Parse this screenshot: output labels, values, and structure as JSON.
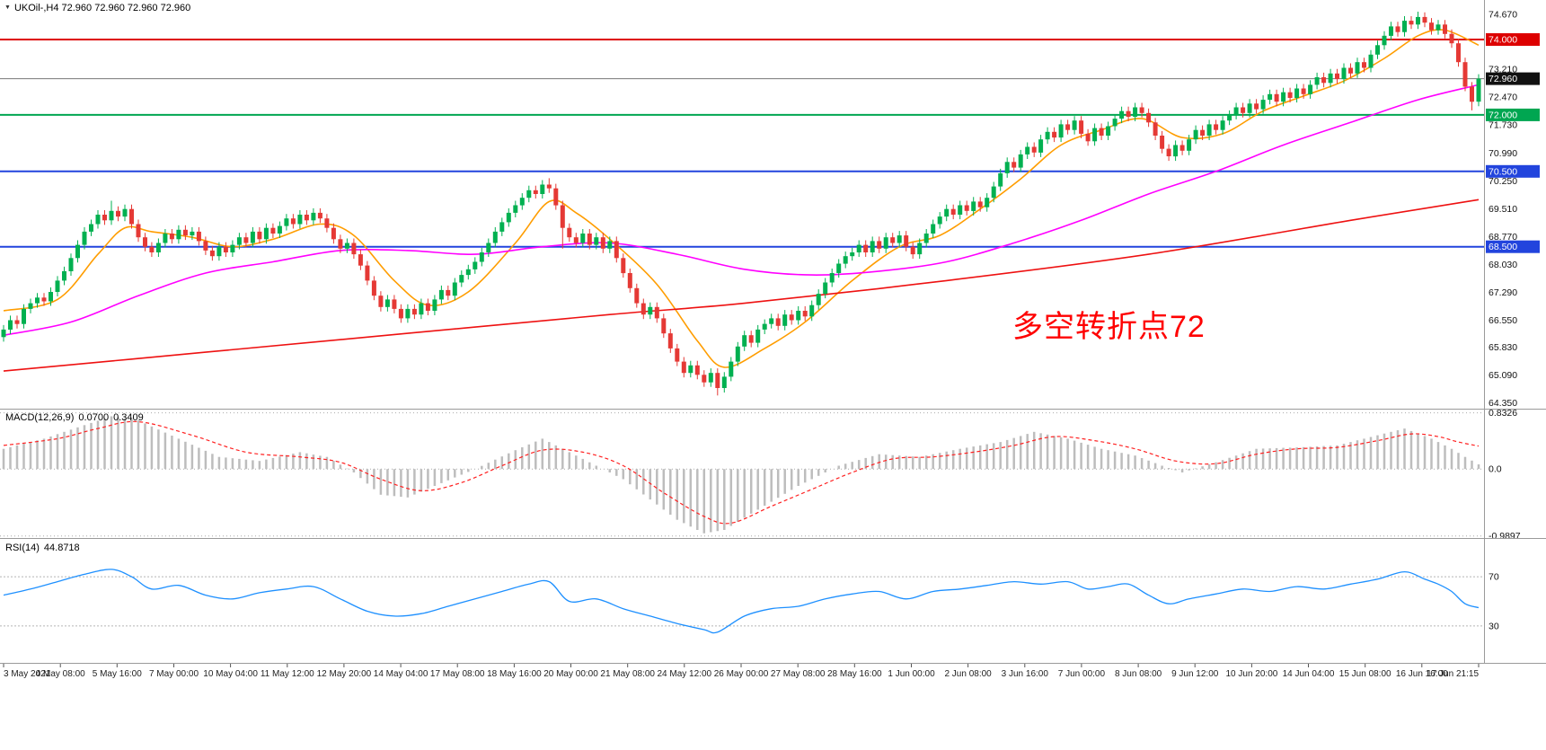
{
  "header": {
    "marker_glyph": "▼",
    "symbol_line": "UKOil-,H4 72.960 72.960 72.960 72.960"
  },
  "annotation": {
    "text": "多空转折点72",
    "color": "#ff0000"
  },
  "chart_data": {
    "type": "candlestick",
    "symbol": "UKOil-",
    "timeframe": "H4",
    "x_labels": [
      "3 May 2021",
      "4 May 08:00",
      "5 May 16:00",
      "7 May 00:00",
      "10 May 04:00",
      "11 May 12:00",
      "12 May 20:00",
      "14 May 04:00",
      "17 May 08:00",
      "18 May 16:00",
      "20 May 00:00",
      "21 May 08:00",
      "24 May 12:00",
      "26 May 00:00",
      "27 May 08:00",
      "28 May 16:00",
      "1 Jun 00:00",
      "2 Jun 08:00",
      "3 Jun 16:00",
      "7 Jun 00:00",
      "8 Jun 08:00",
      "9 Jun 12:00",
      "10 Jun 20:00",
      "14 Jun 04:00",
      "15 Jun 08:00",
      "16 Jun 16:00",
      "17 Jun 21:15"
    ],
    "price_axis": {
      "ticks": [
        74.67,
        73.21,
        72.47,
        71.73,
        70.99,
        70.25,
        69.51,
        68.77,
        68.03,
        67.29,
        66.55,
        65.83,
        65.09,
        64.35
      ],
      "range": [
        64.2,
        75.05
      ]
    },
    "hlines": [
      {
        "price": 74.0,
        "color": "#dd0000",
        "width": 2,
        "badge_bg": "#dd0000"
      },
      {
        "price": 72.96,
        "color": "#777777",
        "width": 1,
        "badge_bg": "#111111"
      },
      {
        "price": 72.0,
        "color": "#00a651",
        "width": 2,
        "badge_bg": "#00a651"
      },
      {
        "price": 70.5,
        "color": "#2244dd",
        "width": 2,
        "badge_bg": "#2244dd"
      },
      {
        "price": 68.5,
        "color": "#2244dd",
        "width": 2,
        "badge_bg": "#2244dd"
      }
    ],
    "candles": {
      "up_color": "#00b050",
      "down_color": "#e53935",
      "first_open": 66.1,
      "default_wick": 0.12,
      "spikes": [
        [
          16,
          "high",
          69.72
        ],
        [
          81,
          "high",
          70.32
        ],
        [
          83,
          "low",
          68.45
        ],
        [
          106,
          "low",
          64.55
        ],
        [
          210,
          "high",
          74.74
        ],
        [
          218,
          "low",
          72.12
        ]
      ],
      "closes": [
        66.3,
        66.55,
        66.45,
        66.85,
        67.0,
        67.15,
        67.05,
        67.3,
        67.6,
        67.85,
        68.2,
        68.55,
        68.9,
        69.1,
        69.35,
        69.2,
        69.45,
        69.3,
        69.5,
        69.1,
        68.75,
        68.5,
        68.35,
        68.6,
        68.85,
        68.7,
        68.95,
        68.8,
        68.9,
        68.65,
        68.4,
        68.25,
        68.5,
        68.35,
        68.55,
        68.75,
        68.6,
        68.9,
        68.7,
        69.0,
        68.85,
        69.05,
        69.25,
        69.1,
        69.35,
        69.2,
        69.4,
        69.25,
        69.0,
        68.7,
        68.45,
        68.6,
        68.3,
        68.0,
        67.6,
        67.2,
        66.9,
        67.1,
        66.85,
        66.6,
        66.85,
        66.7,
        67.0,
        66.8,
        67.1,
        67.35,
        67.2,
        67.55,
        67.75,
        67.9,
        68.1,
        68.35,
        68.6,
        68.9,
        69.15,
        69.4,
        69.6,
        69.8,
        70.0,
        69.9,
        70.15,
        70.05,
        69.6,
        69.0,
        68.75,
        68.6,
        68.85,
        68.55,
        68.75,
        68.45,
        68.65,
        68.2,
        67.8,
        67.4,
        67.0,
        66.7,
        66.9,
        66.6,
        66.2,
        65.8,
        65.45,
        65.15,
        65.35,
        65.1,
        64.9,
        65.15,
        64.75,
        65.05,
        65.45,
        65.85,
        66.15,
        65.95,
        66.3,
        66.45,
        66.6,
        66.4,
        66.7,
        66.55,
        66.8,
        66.65,
        66.95,
        67.25,
        67.55,
        67.8,
        68.05,
        68.25,
        68.35,
        68.55,
        68.35,
        68.65,
        68.45,
        68.75,
        68.6,
        68.8,
        68.5,
        68.3,
        68.6,
        68.85,
        69.1,
        69.3,
        69.5,
        69.35,
        69.6,
        69.45,
        69.7,
        69.55,
        69.8,
        70.1,
        70.45,
        70.75,
        70.6,
        70.95,
        71.15,
        71.0,
        71.35,
        71.55,
        71.4,
        71.75,
        71.6,
        71.85,
        71.5,
        71.3,
        71.65,
        71.45,
        71.7,
        71.9,
        72.1,
        71.95,
        72.2,
        72.05,
        71.8,
        71.45,
        71.1,
        70.9,
        71.2,
        71.05,
        71.35,
        71.6,
        71.45,
        71.75,
        71.6,
        71.85,
        72.0,
        72.2,
        72.05,
        72.3,
        72.15,
        72.4,
        72.55,
        72.35,
        72.6,
        72.45,
        72.7,
        72.55,
        72.8,
        73.0,
        72.85,
        73.1,
        72.95,
        73.25,
        73.1,
        73.4,
        73.25,
        73.6,
        73.85,
        74.1,
        74.35,
        74.2,
        74.5,
        74.4,
        74.6,
        74.45,
        74.25,
        74.4,
        74.15,
        73.9,
        73.4,
        72.75,
        72.35,
        72.96
      ]
    },
    "overlays": [
      {
        "name": "ma-fast",
        "color": "#ff9d00",
        "points": [
          [
            0,
            66.8
          ],
          [
            8,
            67.1
          ],
          [
            14,
            68.3
          ],
          [
            18,
            69.0
          ],
          [
            22,
            68.9
          ],
          [
            28,
            68.75
          ],
          [
            34,
            68.5
          ],
          [
            40,
            68.7
          ],
          [
            47,
            69.1
          ],
          [
            52,
            68.8
          ],
          [
            58,
            67.6
          ],
          [
            63,
            66.95
          ],
          [
            69,
            67.3
          ],
          [
            76,
            68.6
          ],
          [
            81,
            69.7
          ],
          [
            85,
            69.4
          ],
          [
            90,
            68.7
          ],
          [
            97,
            67.5
          ],
          [
            103,
            66.0
          ],
          [
            107,
            65.3
          ],
          [
            113,
            65.8
          ],
          [
            119,
            66.5
          ],
          [
            126,
            67.6
          ],
          [
            133,
            68.5
          ],
          [
            139,
            68.8
          ],
          [
            145,
            69.5
          ],
          [
            151,
            70.3
          ],
          [
            157,
            71.2
          ],
          [
            163,
            71.6
          ],
          [
            169,
            71.9
          ],
          [
            175,
            71.4
          ],
          [
            181,
            71.5
          ],
          [
            187,
            72.1
          ],
          [
            193,
            72.5
          ],
          [
            199,
            72.9
          ],
          [
            205,
            73.5
          ],
          [
            210,
            74.1
          ],
          [
            214,
            74.25
          ],
          [
            219,
            73.85
          ]
        ]
      },
      {
        "name": "ma-mid",
        "color": "#ff00ff",
        "points": [
          [
            0,
            66.15
          ],
          [
            10,
            66.5
          ],
          [
            20,
            67.2
          ],
          [
            30,
            67.8
          ],
          [
            40,
            68.1
          ],
          [
            50,
            68.4
          ],
          [
            60,
            68.4
          ],
          [
            70,
            68.3
          ],
          [
            80,
            68.5
          ],
          [
            90,
            68.6
          ],
          [
            100,
            68.3
          ],
          [
            110,
            67.9
          ],
          [
            120,
            67.75
          ],
          [
            130,
            67.85
          ],
          [
            140,
            68.1
          ],
          [
            150,
            68.6
          ],
          [
            160,
            69.2
          ],
          [
            170,
            69.9
          ],
          [
            180,
            70.5
          ],
          [
            190,
            71.2
          ],
          [
            200,
            71.8
          ],
          [
            210,
            72.4
          ],
          [
            219,
            72.8
          ]
        ]
      },
      {
        "name": "ma-slow",
        "color": "#ee1111",
        "points": [
          [
            0,
            65.2
          ],
          [
            30,
            65.7
          ],
          [
            60,
            66.2
          ],
          [
            90,
            66.7
          ],
          [
            110,
            67.0
          ],
          [
            140,
            67.6
          ],
          [
            170,
            68.3
          ],
          [
            200,
            69.2
          ],
          [
            219,
            69.75
          ]
        ]
      }
    ],
    "macd": {
      "label": "MACD(12,26,9)",
      "value_main": "0.0700",
      "value_signal": "0.3409",
      "range": [
        -1.02,
        0.88
      ],
      "ticks": [
        {
          "v": 0.8326,
          "label": "0.8326"
        },
        {
          "v": 0,
          "label": "0.0"
        },
        {
          "v": -0.9897,
          "label": "-0.9897"
        }
      ],
      "hist_color": "#bdbdbd",
      "signal_color": "#ff2020",
      "hist": [
        [
          0,
          0.3
        ],
        [
          6,
          0.45
        ],
        [
          12,
          0.65
        ],
        [
          16,
          0.78
        ],
        [
          20,
          0.72
        ],
        [
          26,
          0.45
        ],
        [
          32,
          0.18
        ],
        [
          38,
          0.12
        ],
        [
          44,
          0.25
        ],
        [
          48,
          0.18
        ],
        [
          52,
          -0.05
        ],
        [
          56,
          -0.38
        ],
        [
          60,
          -0.42
        ],
        [
          64,
          -0.25
        ],
        [
          70,
          0.0
        ],
        [
          76,
          0.28
        ],
        [
          80,
          0.45
        ],
        [
          84,
          0.25
        ],
        [
          88,
          0.05
        ],
        [
          92,
          -0.15
        ],
        [
          96,
          -0.45
        ],
        [
          100,
          -0.75
        ],
        [
          104,
          -0.95
        ],
        [
          107,
          -0.9
        ],
        [
          112,
          -0.6
        ],
        [
          118,
          -0.25
        ],
        [
          124,
          0.05
        ],
        [
          130,
          0.22
        ],
        [
          136,
          0.18
        ],
        [
          142,
          0.3
        ],
        [
          148,
          0.4
        ],
        [
          153,
          0.55
        ],
        [
          158,
          0.45
        ],
        [
          163,
          0.3
        ],
        [
          168,
          0.2
        ],
        [
          172,
          0.05
        ],
        [
          175,
          -0.05
        ],
        [
          180,
          0.1
        ],
        [
          186,
          0.3
        ],
        [
          192,
          0.32
        ],
        [
          198,
          0.35
        ],
        [
          204,
          0.5
        ],
        [
          208,
          0.6
        ],
        [
          212,
          0.45
        ],
        [
          215,
          0.3
        ],
        [
          217,
          0.18
        ],
        [
          219,
          0.07
        ]
      ],
      "signal": [
        [
          0,
          0.35
        ],
        [
          8,
          0.45
        ],
        [
          14,
          0.6
        ],
        [
          20,
          0.7
        ],
        [
          28,
          0.5
        ],
        [
          36,
          0.25
        ],
        [
          44,
          0.18
        ],
        [
          50,
          0.1
        ],
        [
          56,
          -0.15
        ],
        [
          62,
          -0.32
        ],
        [
          68,
          -0.2
        ],
        [
          74,
          0.05
        ],
        [
          80,
          0.28
        ],
        [
          86,
          0.25
        ],
        [
          92,
          0.05
        ],
        [
          98,
          -0.35
        ],
        [
          104,
          -0.7
        ],
        [
          108,
          -0.8
        ],
        [
          114,
          -0.55
        ],
        [
          120,
          -0.3
        ],
        [
          126,
          -0.05
        ],
        [
          132,
          0.15
        ],
        [
          138,
          0.18
        ],
        [
          144,
          0.25
        ],
        [
          150,
          0.35
        ],
        [
          156,
          0.48
        ],
        [
          162,
          0.42
        ],
        [
          168,
          0.3
        ],
        [
          174,
          0.12
        ],
        [
          180,
          0.08
        ],
        [
          186,
          0.22
        ],
        [
          192,
          0.3
        ],
        [
          198,
          0.32
        ],
        [
          204,
          0.42
        ],
        [
          209,
          0.52
        ],
        [
          213,
          0.48
        ],
        [
          216,
          0.4
        ],
        [
          219,
          0.34
        ]
      ]
    },
    "rsi": {
      "label": "RSI(14)",
      "value": "44.8718",
      "range": [
        0,
        100
      ],
      "levels": [
        {
          "v": 70,
          "label": "70"
        },
        {
          "v": 30,
          "label": "30"
        }
      ],
      "color": "#1e90ff",
      "points": [
        [
          0,
          55
        ],
        [
          4,
          60
        ],
        [
          8,
          66
        ],
        [
          12,
          72
        ],
        [
          16,
          76
        ],
        [
          19,
          70
        ],
        [
          22,
          60
        ],
        [
          26,
          63
        ],
        [
          30,
          55
        ],
        [
          34,
          52
        ],
        [
          38,
          57
        ],
        [
          42,
          60
        ],
        [
          46,
          62
        ],
        [
          50,
          52
        ],
        [
          54,
          42
        ],
        [
          58,
          38
        ],
        [
          62,
          40
        ],
        [
          66,
          46
        ],
        [
          70,
          52
        ],
        [
          74,
          58
        ],
        [
          78,
          64
        ],
        [
          81,
          66
        ],
        [
          84,
          50
        ],
        [
          88,
          52
        ],
        [
          92,
          44
        ],
        [
          96,
          38
        ],
        [
          100,
          32
        ],
        [
          104,
          27
        ],
        [
          106,
          25
        ],
        [
          110,
          38
        ],
        [
          114,
          44
        ],
        [
          118,
          46
        ],
        [
          122,
          52
        ],
        [
          126,
          56
        ],
        [
          130,
          58
        ],
        [
          134,
          52
        ],
        [
          138,
          58
        ],
        [
          142,
          60
        ],
        [
          146,
          63
        ],
        [
          150,
          66
        ],
        [
          154,
          64
        ],
        [
          158,
          66
        ],
        [
          161,
          60
        ],
        [
          164,
          62
        ],
        [
          167,
          64
        ],
        [
          170,
          55
        ],
        [
          173,
          48
        ],
        [
          176,
          52
        ],
        [
          180,
          56
        ],
        [
          184,
          60
        ],
        [
          188,
          58
        ],
        [
          192,
          62
        ],
        [
          196,
          60
        ],
        [
          200,
          64
        ],
        [
          204,
          68
        ],
        [
          208,
          74
        ],
        [
          211,
          68
        ],
        [
          213,
          64
        ],
        [
          215,
          58
        ],
        [
          217,
          48
        ],
        [
          219,
          44.87
        ]
      ]
    }
  }
}
